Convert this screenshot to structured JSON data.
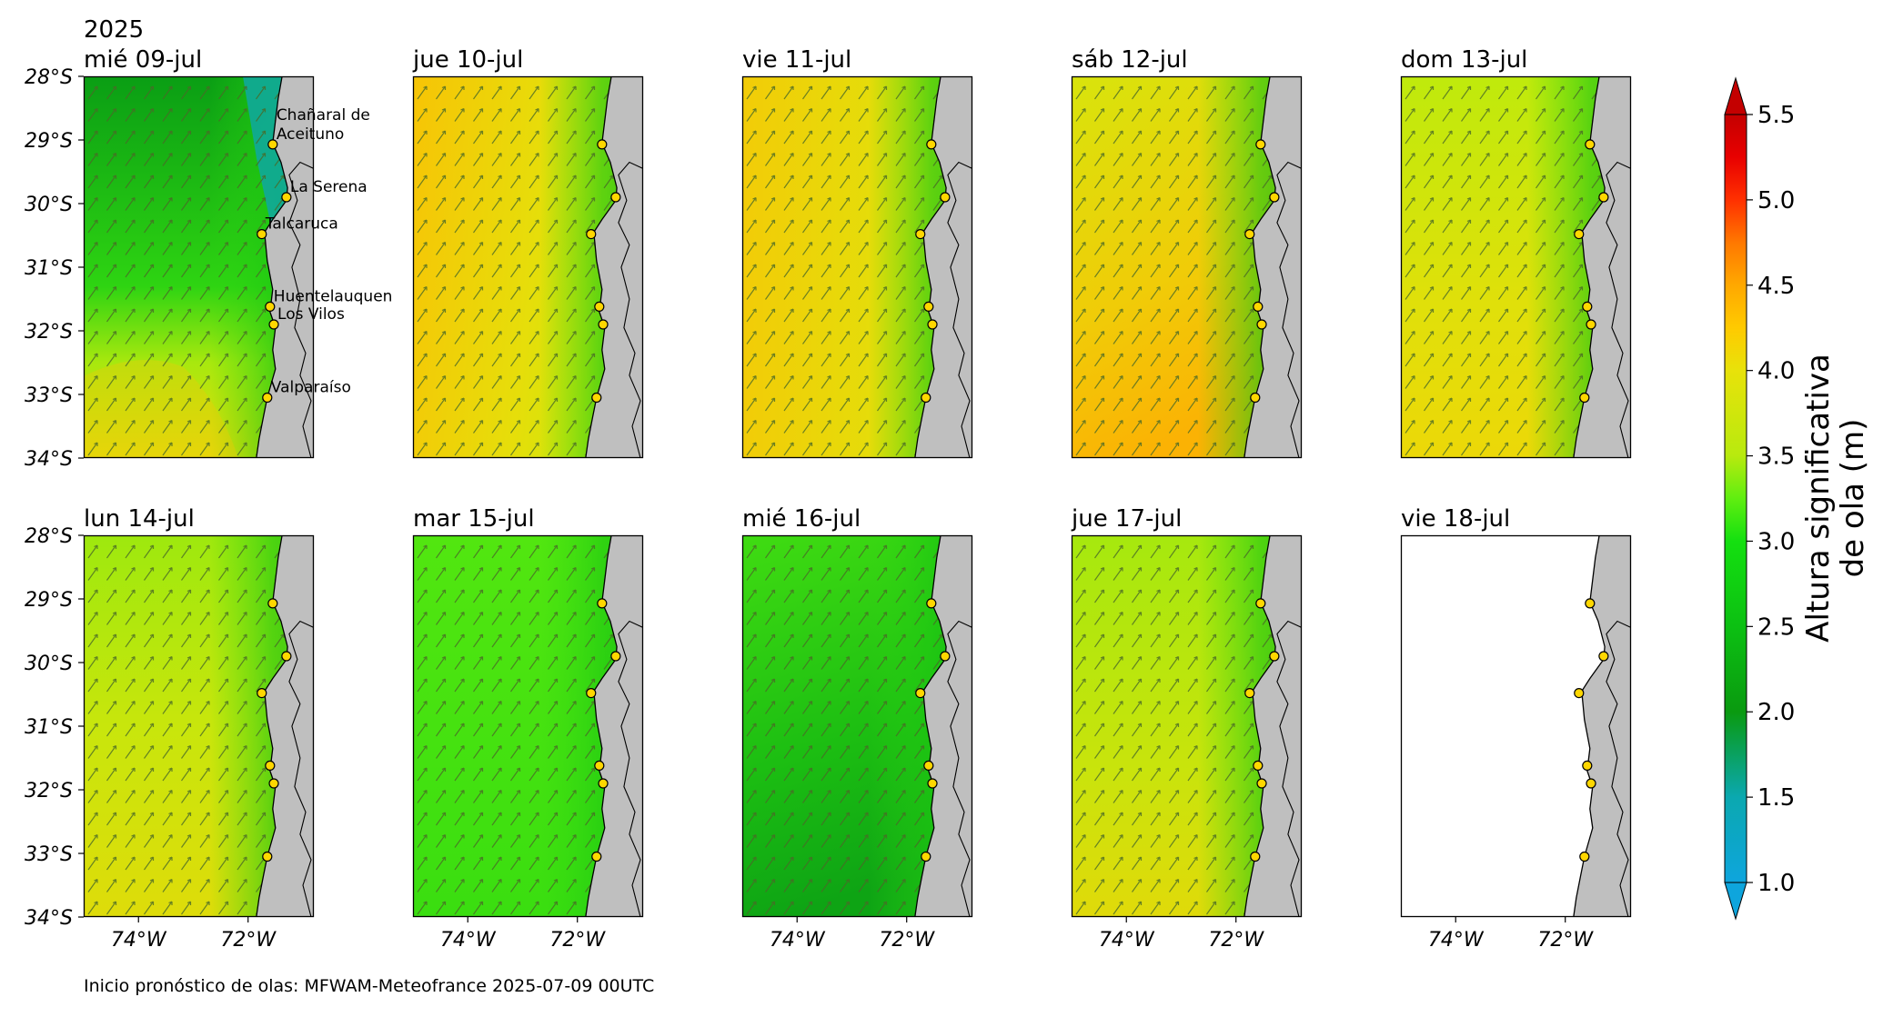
{
  "year": "2025",
  "panels": [
    {
      "date": "mié 09-jul",
      "style": "w0"
    },
    {
      "date": "jue 10-jul",
      "style": "w1"
    },
    {
      "date": "vie 11-jul",
      "style": "w2"
    },
    {
      "date": "sáb 12-jul",
      "style": "w3"
    },
    {
      "date": "dom 13-jul",
      "style": "w4"
    },
    {
      "date": "lun 14-jul",
      "style": "w5"
    },
    {
      "date": "mar 15-jul",
      "style": "w6"
    },
    {
      "date": "mié 16-jul",
      "style": "w7"
    },
    {
      "date": "jue 17-jul",
      "style": "w8"
    },
    {
      "date": "vie 18-jul",
      "style": "empty"
    }
  ],
  "lat_ticks": [
    "28°S",
    "29°S",
    "30°S",
    "31°S",
    "32°S",
    "33°S",
    "34°S"
  ],
  "lon_ticks": [
    "74°W",
    "72°W"
  ],
  "map_extent": {
    "lon": [
      -75,
      -70.8
    ],
    "lat": [
      -34,
      -28
    ]
  },
  "locations": [
    {
      "name": "Chañaral de\nAceituno",
      "lon": -71.55,
      "lat": -29.07
    },
    {
      "name": "La Serena",
      "lon": -71.3,
      "lat": -29.9
    },
    {
      "name": "Talcaruca",
      "lon": -71.75,
      "lat": -30.48
    },
    {
      "name": "Huentelauquen",
      "lon": -71.6,
      "lat": -31.62
    },
    {
      "name": "Los Vilos",
      "lon": -71.53,
      "lat": -31.9
    },
    {
      "name": "Valparaíso",
      "lon": -71.65,
      "lat": -33.05
    }
  ],
  "colorbar": {
    "label": "Altura significativa\nde ola (m)",
    "min": 1.0,
    "max": 5.5,
    "ticks": [
      "1.0",
      "1.5",
      "2.0",
      "2.5",
      "3.0",
      "3.5",
      "4.0",
      "4.5",
      "5.0",
      "5.5"
    ],
    "extend": "both",
    "colors": [
      "#0ea5dd",
      "#0ba8b0",
      "#0fa060",
      "#0a9a10",
      "#0cc012",
      "#14e010",
      "#60ee10",
      "#b8ea0e",
      "#e8e20a",
      "#ffca00",
      "#ffa800",
      "#ff7800",
      "#ff3000",
      "#e80000",
      "#c40000"
    ]
  },
  "footer": "Inicio pronóstico de olas: MFWAM-Meteofrance 2025-07-09 00UTC"
}
